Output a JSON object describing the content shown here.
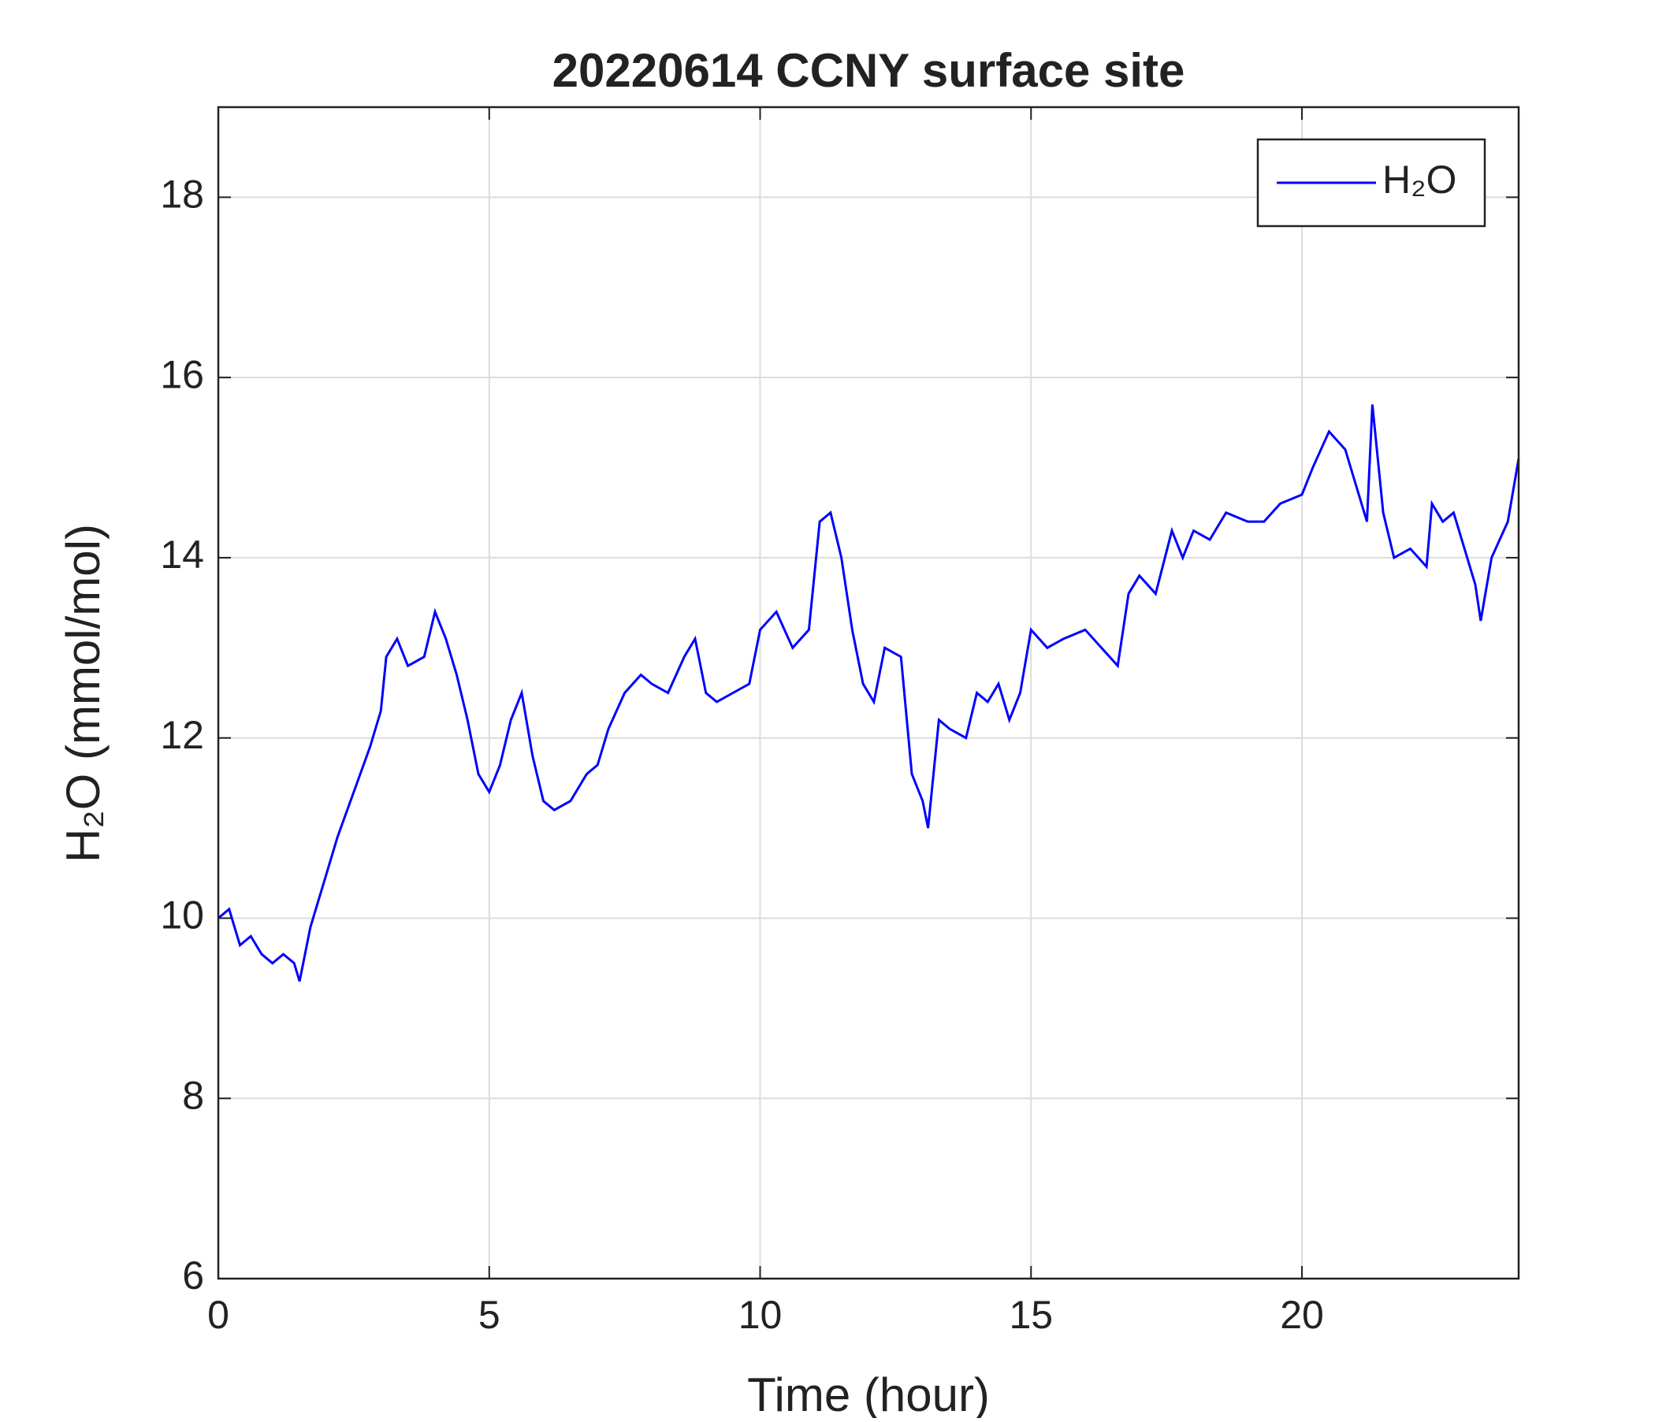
{
  "chart_data": {
    "type": "line",
    "title": "20220614 CCNY surface site",
    "xlabel": "Time (hour)",
    "ylabel": "H₂O (mmol/mol)",
    "x": [
      0,
      0.2,
      0.4,
      0.6,
      0.8,
      1.0,
      1.2,
      1.4,
      1.5,
      1.7,
      2.0,
      2.2,
      2.5,
      2.8,
      3.0,
      3.1,
      3.3,
      3.5,
      3.8,
      4.0,
      4.2,
      4.4,
      4.6,
      4.8,
      5.0,
      5.2,
      5.4,
      5.6,
      5.8,
      6.0,
      6.2,
      6.5,
      6.8,
      7.0,
      7.2,
      7.5,
      7.8,
      8.0,
      8.3,
      8.6,
      8.8,
      9.0,
      9.2,
      9.5,
      9.8,
      10.0,
      10.3,
      10.6,
      10.9,
      11.1,
      11.3,
      11.5,
      11.7,
      11.9,
      12.1,
      12.3,
      12.6,
      12.8,
      13.0,
      13.1,
      13.3,
      13.5,
      13.8,
      14.0,
      14.2,
      14.4,
      14.6,
      14.8,
      15.0,
      15.3,
      15.6,
      16.0,
      16.3,
      16.6,
      16.8,
      17.0,
      17.3,
      17.6,
      17.8,
      18.0,
      18.3,
      18.6,
      19.0,
      19.3,
      19.6,
      20.0,
      20.2,
      20.5,
      20.8,
      21.0,
      21.2,
      21.3,
      21.5,
      21.7,
      22.0,
      22.3,
      22.4,
      22.6,
      22.8,
      23.0,
      23.2,
      23.3,
      23.5,
      23.8,
      24.0
    ],
    "series": [
      {
        "name": "H₂O",
        "color": "#0000ff",
        "values": [
          10.0,
          10.1,
          9.7,
          9.8,
          9.6,
          9.5,
          9.6,
          9.5,
          9.3,
          9.9,
          10.5,
          10.9,
          11.4,
          11.9,
          12.3,
          12.9,
          13.1,
          12.8,
          12.9,
          13.4,
          13.1,
          12.7,
          12.2,
          11.6,
          11.4,
          11.7,
          12.2,
          12.5,
          11.8,
          11.3,
          11.2,
          11.3,
          11.6,
          11.7,
          12.1,
          12.5,
          12.7,
          12.6,
          12.5,
          12.9,
          13.1,
          12.5,
          12.4,
          12.5,
          12.6,
          13.2,
          13.4,
          13.0,
          13.2,
          14.4,
          14.5,
          14.0,
          13.2,
          12.6,
          12.4,
          13.0,
          12.9,
          11.6,
          11.3,
          11.0,
          12.2,
          12.1,
          12.0,
          12.5,
          12.4,
          12.6,
          12.2,
          12.5,
          13.2,
          13.0,
          13.1,
          13.2,
          13.0,
          12.8,
          13.6,
          13.8,
          13.6,
          14.3,
          14.0,
          14.3,
          14.2,
          14.5,
          14.4,
          14.4,
          14.6,
          14.7,
          15.0,
          15.4,
          15.2,
          14.8,
          14.4,
          15.7,
          14.5,
          14.0,
          14.1,
          13.9,
          14.6,
          14.4,
          14.5,
          14.1,
          13.7,
          13.3,
          14.0,
          14.4,
          15.1
        ]
      }
    ],
    "xlim": [
      0,
      24
    ],
    "xticks": [
      0,
      5,
      10,
      15,
      20
    ],
    "ylim": [
      6,
      19
    ],
    "yticks": [
      6,
      8,
      10,
      12,
      14,
      16,
      18
    ],
    "grid": true,
    "legend": "upper right"
  }
}
